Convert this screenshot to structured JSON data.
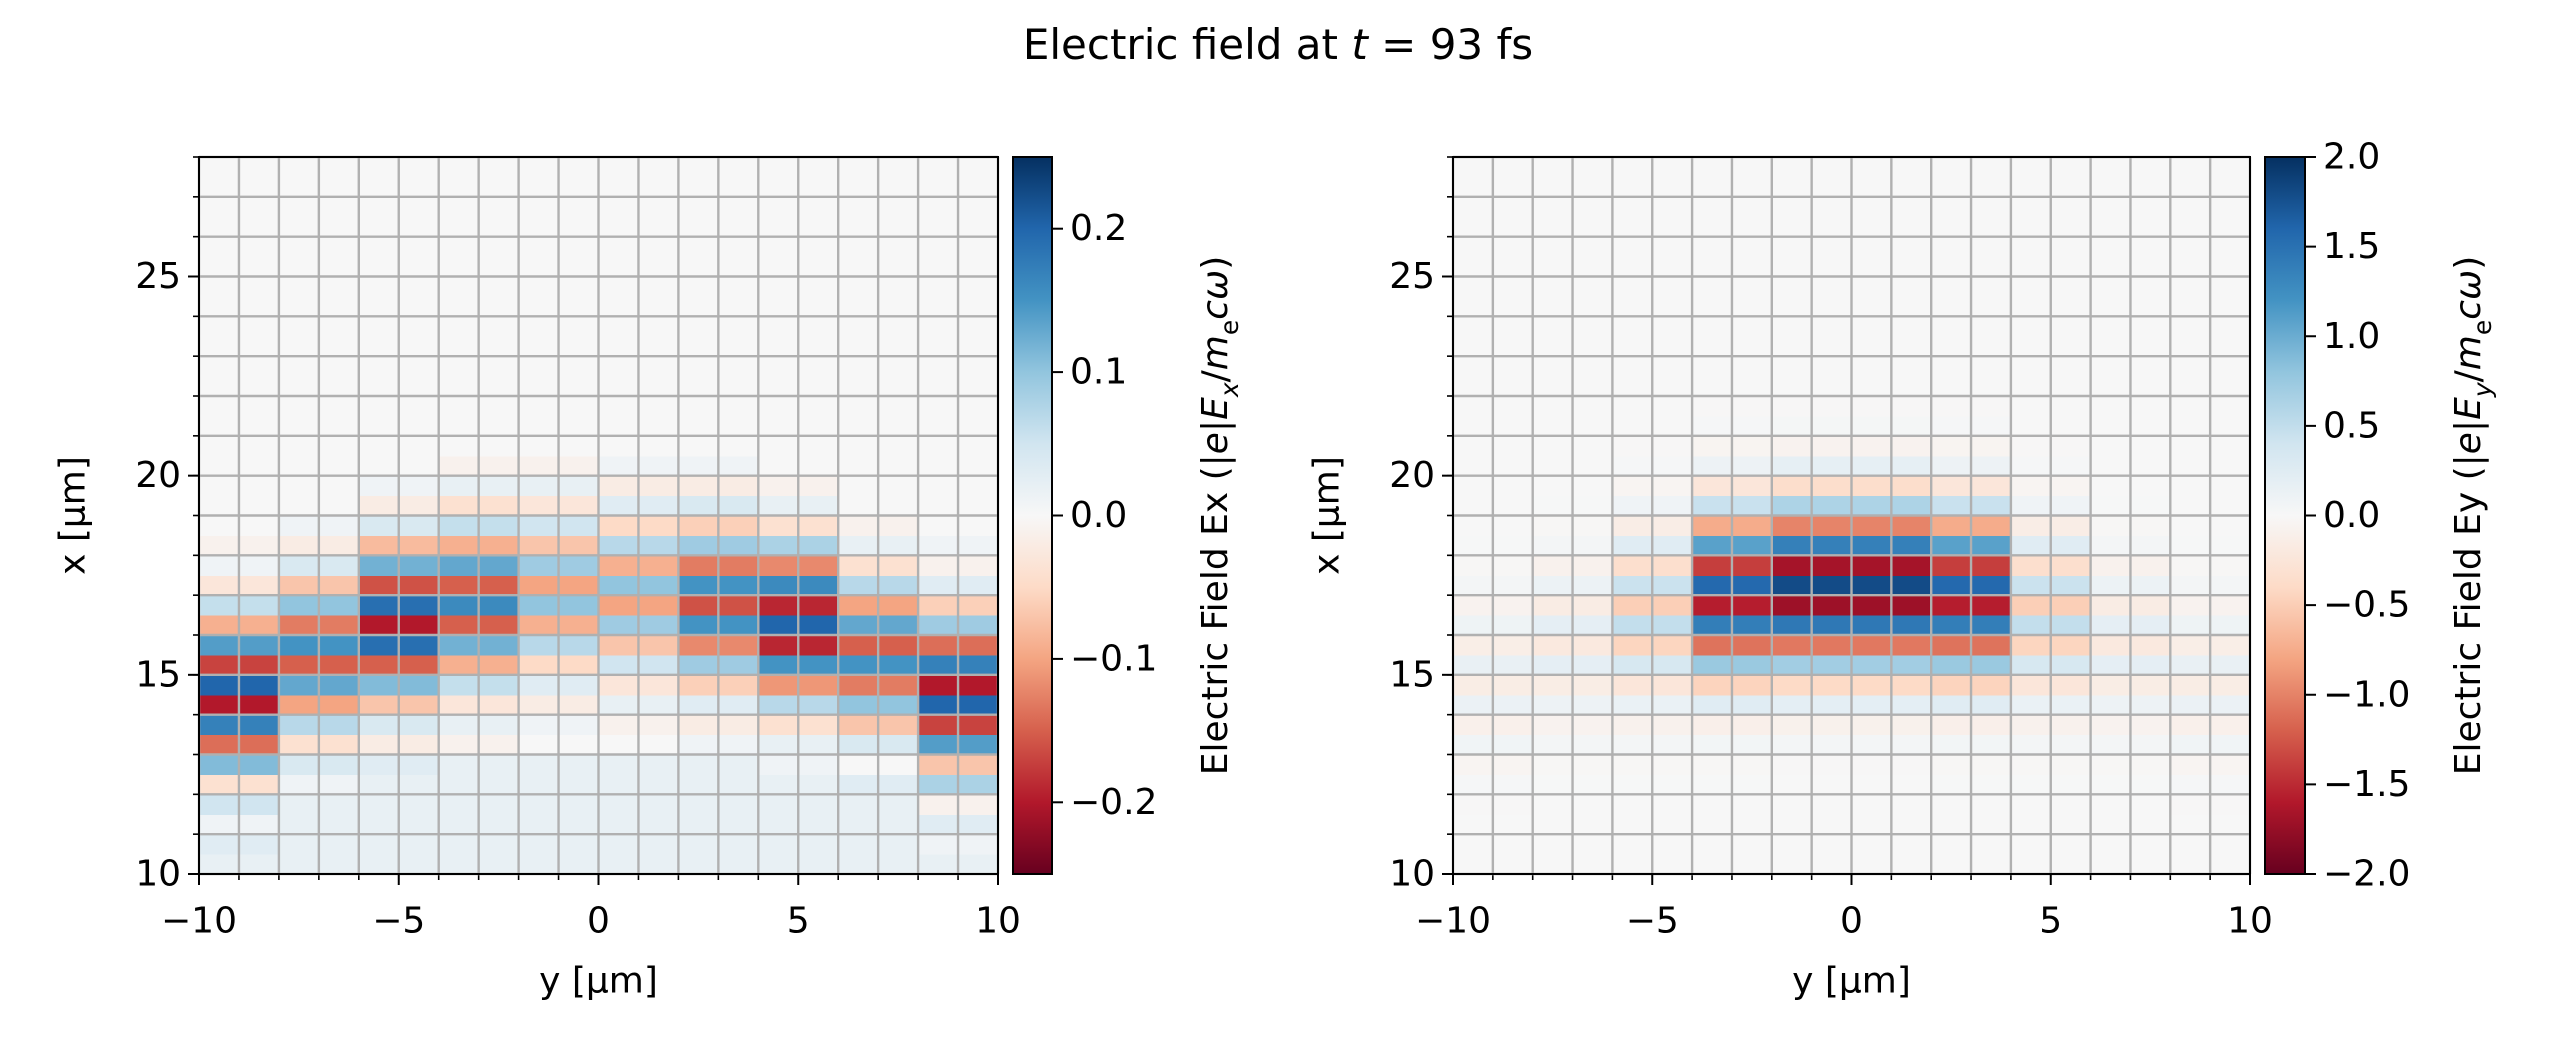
{
  "title": [
    "Electric field at ",
    "t",
    " = 93 fs"
  ],
  "chart_data": [
    {
      "type": "heatmap",
      "xlabel": "y [µm]",
      "ylabel": "x [µm]",
      "xlim": [
        -10,
        10
      ],
      "ylim": [
        10,
        28
      ],
      "xticks": [
        {
          "value": -10,
          "label": "−10"
        },
        {
          "value": -5,
          "label": "−5"
        },
        0,
        5,
        10
      ],
      "yticks": [
        10,
        15,
        20,
        25
      ],
      "xgrid": [
        -10,
        -9,
        -8,
        -7,
        -6,
        -5,
        -4,
        -3,
        -2,
        -1,
        0,
        1,
        2,
        3,
        4,
        5,
        6,
        7,
        8,
        9,
        10
      ],
      "ygrid": [
        10,
        11,
        12,
        13,
        14,
        15,
        16,
        17,
        18,
        19,
        20,
        21,
        22,
        23,
        24,
        25,
        26,
        27,
        28
      ],
      "grid": true,
      "colorbar": {
        "label": [
          "Electric Field Ex (|",
          "e",
          "|",
          "E",
          "x",
          "/",
          "m",
          "e",
          "c",
          "ω",
          ")"
        ],
        "colormap": "RdBu_r",
        "lim": [
          -0.25,
          0.25
        ],
        "ticks": [
          {
            "value": -0.2,
            "label": "−0.2"
          },
          {
            "value": -0.1,
            "label": "−0.1"
          },
          {
            "value": 0,
            "label": "0.0"
          },
          0.1,
          0.2
        ]
      },
      "x": [
        -9,
        -7,
        -5,
        -3,
        -1,
        1,
        3,
        5,
        7,
        9
      ],
      "y": [
        10.25,
        10.75,
        11.25,
        11.75,
        12.25,
        12.75,
        13.25,
        13.75,
        14.25,
        14.75,
        15.25,
        15.75,
        16.25,
        16.75,
        17.25,
        17.75,
        18.25,
        18.75,
        19.25,
        19.75,
        20.25,
        20.75,
        21.25,
        21.75,
        22.25,
        22.75,
        23.25,
        23.75,
        24.25,
        24.75,
        25.25,
        25.75,
        26.25,
        26.75,
        27.25,
        27.75
      ],
      "z": [
        [
          0.02,
          0.02,
          0.02,
          0.02,
          0.02,
          0.02,
          0.02,
          0.02,
          0.02,
          0.02
        ],
        [
          0.03,
          0.02,
          0.02,
          0.02,
          0.02,
          0.02,
          0.02,
          0.02,
          0.02,
          0.01
        ],
        [
          0.01,
          0.02,
          0.02,
          0.02,
          0.02,
          0.02,
          0.02,
          0.02,
          0.02,
          0.03
        ],
        [
          0.05,
          0.02,
          0.02,
          0.02,
          0.02,
          0.02,
          0.02,
          0.02,
          0.02,
          -0.01
        ],
        [
          -0.04,
          0.01,
          0.02,
          0.02,
          0.02,
          0.02,
          0.02,
          0.02,
          0.03,
          0.08
        ],
        [
          0.11,
          0.04,
          0.03,
          0.02,
          0.02,
          0.02,
          0.02,
          0.01,
          0.0,
          -0.07
        ],
        [
          -0.14,
          -0.04,
          -0.02,
          -0.01,
          0.0,
          0.0,
          0.01,
          0.02,
          0.04,
          0.14
        ],
        [
          0.17,
          0.07,
          0.04,
          0.02,
          0.01,
          -0.01,
          -0.02,
          -0.04,
          -0.07,
          -0.17
        ],
        [
          -0.2,
          -0.1,
          -0.07,
          -0.03,
          -0.02,
          0.02,
          0.03,
          0.07,
          0.1,
          0.2
        ],
        [
          0.2,
          0.13,
          0.11,
          0.06,
          0.03,
          -0.03,
          -0.06,
          -0.11,
          -0.13,
          -0.2
        ],
        [
          -0.17,
          -0.15,
          -0.15,
          -0.09,
          -0.05,
          0.05,
          0.09,
          0.15,
          0.15,
          0.17
        ],
        [
          0.14,
          0.15,
          0.19,
          0.12,
          0.07,
          -0.07,
          -0.12,
          -0.19,
          -0.15,
          -0.14
        ],
        [
          -0.09,
          -0.13,
          -0.2,
          -0.15,
          -0.09,
          0.09,
          0.15,
          0.2,
          0.13,
          0.09
        ],
        [
          0.06,
          0.1,
          0.19,
          0.16,
          0.1,
          -0.1,
          -0.16,
          -0.19,
          -0.1,
          -0.06
        ],
        [
          -0.03,
          -0.07,
          -0.16,
          -0.15,
          -0.1,
          0.1,
          0.15,
          0.16,
          0.07,
          0.03
        ],
        [
          0.01,
          0.04,
          0.12,
          0.13,
          0.09,
          -0.09,
          -0.13,
          -0.12,
          -0.04,
          -0.01
        ],
        [
          -0.01,
          -0.02,
          -0.08,
          -0.09,
          -0.07,
          0.07,
          0.09,
          0.08,
          0.02,
          0.01
        ],
        [
          0,
          0.01,
          0.04,
          0.06,
          0.05,
          -0.05,
          -0.06,
          -0.04,
          -0.01,
          0
        ],
        [
          0,
          0,
          -0.02,
          -0.04,
          -0.03,
          0.03,
          0.04,
          0.02,
          0,
          0
        ],
        [
          0,
          0,
          0.01,
          0.02,
          0.02,
          -0.02,
          -0.02,
          -0.01,
          0,
          0
        ],
        [
          0,
          0,
          0,
          -0.01,
          -0.01,
          0.01,
          0.01,
          0,
          0,
          0
        ],
        [
          0,
          0,
          0,
          0,
          0,
          0,
          0,
          0,
          0,
          0
        ],
        [
          0,
          0,
          0,
          0,
          0,
          0,
          0,
          0,
          0,
          0
        ],
        [
          0,
          0,
          0,
          0,
          0,
          0,
          0,
          0,
          0,
          0
        ],
        [
          0,
          0,
          0,
          0,
          0,
          0,
          0,
          0,
          0,
          0
        ],
        [
          0,
          0,
          0,
          0,
          0,
          0,
          0,
          0,
          0,
          0
        ],
        [
          0,
          0,
          0,
          0,
          0,
          0,
          0,
          0,
          0,
          0
        ],
        [
          0,
          0,
          0,
          0,
          0,
          0,
          0,
          0,
          0,
          0
        ],
        [
          0,
          0,
          0,
          0,
          0,
          0,
          0,
          0,
          0,
          0
        ],
        [
          0,
          0,
          0,
          0,
          0,
          0,
          0,
          0,
          0,
          0
        ],
        [
          0,
          0,
          0,
          0,
          0,
          0,
          0,
          0,
          0,
          0
        ],
        [
          0,
          0,
          0,
          0,
          0,
          0,
          0,
          0,
          0,
          0
        ],
        [
          0,
          0,
          0,
          0,
          0,
          0,
          0,
          0,
          0,
          0
        ],
        [
          0,
          0,
          0,
          0,
          0,
          0,
          0,
          0,
          0,
          0
        ],
        [
          0,
          0,
          0,
          0,
          0,
          0,
          0,
          0,
          0,
          0
        ],
        [
          0,
          0,
          0,
          0,
          0,
          0,
          0,
          0,
          0,
          0
        ]
      ]
    },
    {
      "type": "heatmap",
      "xlabel": "y [µm]",
      "ylabel": "x [µm]",
      "xlim": [
        -10,
        10
      ],
      "ylim": [
        10,
        28
      ],
      "xticks": [
        {
          "value": -10,
          "label": "−10"
        },
        {
          "value": -5,
          "label": "−5"
        },
        0,
        5,
        10
      ],
      "yticks": [
        10,
        15,
        20,
        25
      ],
      "xgrid": [
        -10,
        -9,
        -8,
        -7,
        -6,
        -5,
        -4,
        -3,
        -2,
        -1,
        0,
        1,
        2,
        3,
        4,
        5,
        6,
        7,
        8,
        9,
        10
      ],
      "ygrid": [
        10,
        11,
        12,
        13,
        14,
        15,
        16,
        17,
        18,
        19,
        20,
        21,
        22,
        23,
        24,
        25,
        26,
        27,
        28
      ],
      "grid": true,
      "colorbar": {
        "label": [
          "Electric Field Ey (|",
          "e",
          "|",
          "E",
          "y",
          "/",
          "m",
          "e",
          "c",
          "ω",
          ")"
        ],
        "colormap": "RdBu_r",
        "lim": [
          -2,
          2
        ],
        "ticks": [
          {
            "value": -2,
            "label": "−2.0"
          },
          {
            "value": -1.5,
            "label": "−1.5"
          },
          {
            "value": -1,
            "label": "−1.0"
          },
          {
            "value": -0.5,
            "label": "−0.5"
          },
          {
            "value": 0,
            "label": "0.0"
          },
          0.5,
          {
            "value": 1,
            "label": "1.0"
          },
          1.5,
          {
            "value": 2,
            "label": "2.0"
          }
        ]
      },
      "x": [
        -9,
        -7,
        -5,
        -3,
        -1,
        1,
        3,
        5,
        7,
        9
      ],
      "y": [
        10.25,
        10.75,
        11.25,
        11.75,
        12.25,
        12.75,
        13.25,
        13.75,
        14.25,
        14.75,
        15.25,
        15.75,
        16.25,
        16.75,
        17.25,
        17.75,
        18.25,
        18.75,
        19.25,
        19.75,
        20.25,
        20.75,
        21.25,
        21.75,
        22.25,
        22.75,
        23.25,
        23.75,
        24.25,
        24.75,
        25.25,
        25.75,
        26.25,
        26.75,
        27.25,
        27.75
      ],
      "z": [
        [
          0,
          0,
          0,
          0,
          0,
          0,
          0,
          0,
          0,
          0
        ],
        [
          0,
          0,
          0,
          0,
          0,
          0,
          0,
          0,
          0,
          0
        ],
        [
          0,
          0,
          0,
          0,
          0,
          0,
          0,
          0,
          0,
          0
        ],
        [
          -0.01,
          0,
          0,
          0,
          0,
          0,
          0,
          0,
          0,
          -0.01
        ],
        [
          0.02,
          0.01,
          0.01,
          0.01,
          0,
          0,
          0.01,
          0.01,
          0.01,
          0.02
        ],
        [
          -0.04,
          -0.02,
          -0.02,
          -0.02,
          -0.01,
          -0.01,
          -0.02,
          -0.02,
          -0.02,
          -0.04
        ],
        [
          0.07,
          0.04,
          0.04,
          0.05,
          0.04,
          0.04,
          0.05,
          0.04,
          0.04,
          0.07
        ],
        [
          -0.1,
          -0.07,
          -0.08,
          -0.11,
          -0.09,
          -0.09,
          -0.11,
          -0.08,
          -0.07,
          -0.1
        ],
        [
          0.13,
          0.11,
          0.14,
          0.24,
          0.2,
          0.2,
          0.24,
          0.14,
          0.11,
          0.13
        ],
        [
          -0.15,
          -0.15,
          -0.24,
          -0.45,
          -0.4,
          -0.4,
          -0.45,
          -0.24,
          -0.15,
          -0.15
        ],
        [
          0.15,
          0.19,
          0.34,
          0.75,
          0.7,
          0.7,
          0.75,
          0.34,
          0.19,
          0.15
        ],
        [
          -0.13,
          -0.2,
          -0.44,
          -1.09,
          -1.06,
          -1.06,
          -1.09,
          -0.44,
          -0.2,
          -0.13
        ],
        [
          0.1,
          0.19,
          0.49,
          1.39,
          1.44,
          1.44,
          1.39,
          0.49,
          0.19,
          0.1
        ],
        [
          -0.07,
          -0.16,
          -0.49,
          -1.57,
          -1.71,
          -1.71,
          -1.57,
          -0.49,
          -0.16,
          -0.07
        ],
        [
          0.04,
          0.12,
          0.44,
          1.57,
          1.8,
          1.8,
          1.57,
          0.44,
          0.12,
          0.04
        ],
        [
          -0.02,
          -0.08,
          -0.34,
          -1.39,
          -1.67,
          -1.67,
          -1.39,
          -0.34,
          -0.08,
          -0.02
        ],
        [
          0.01,
          0.04,
          0.24,
          1.09,
          1.37,
          1.37,
          1.09,
          0.24,
          0.04,
          0.01
        ],
        [
          0,
          -0.02,
          -0.14,
          -0.75,
          -0.99,
          -0.99,
          -0.75,
          -0.14,
          -0.02,
          0
        ],
        [
          0,
          0.01,
          0.08,
          0.45,
          0.63,
          0.63,
          0.45,
          0.08,
          0.01,
          0
        ],
        [
          0,
          0,
          -0.04,
          -0.24,
          -0.36,
          -0.36,
          -0.24,
          -0.04,
          0,
          0
        ],
        [
          0,
          0,
          0.02,
          0.11,
          0.18,
          0.18,
          0.11,
          0.02,
          0,
          0
        ],
        [
          0,
          0,
          -0.01,
          -0.05,
          -0.07,
          -0.07,
          -0.05,
          -0.01,
          0,
          0
        ],
        [
          0,
          0,
          0,
          0.02,
          0.03,
          0.03,
          0.02,
          0,
          0,
          0
        ],
        [
          0,
          0,
          0,
          -0.01,
          -0.01,
          -0.01,
          -0.01,
          0,
          0,
          0
        ],
        [
          0,
          0,
          0,
          0,
          0,
          0,
          0,
          0,
          0,
          0
        ],
        [
          0,
          0,
          0,
          0,
          0,
          0,
          0,
          0,
          0,
          0
        ],
        [
          0,
          0,
          0,
          0,
          0,
          0,
          0,
          0,
          0,
          0
        ],
        [
          0,
          0,
          0,
          0,
          0,
          0,
          0,
          0,
          0,
          0
        ],
        [
          0,
          0,
          0,
          0,
          0,
          0,
          0,
          0,
          0,
          0
        ],
        [
          0,
          0,
          0,
          0,
          0,
          0,
          0,
          0,
          0,
          0
        ],
        [
          0,
          0,
          0,
          0,
          0,
          0,
          0,
          0,
          0,
          0
        ],
        [
          0,
          0,
          0,
          0,
          0,
          0,
          0,
          0,
          0,
          0
        ],
        [
          0,
          0,
          0,
          0,
          0,
          0,
          0,
          0,
          0,
          0
        ],
        [
          0,
          0,
          0,
          0,
          0,
          0,
          0,
          0,
          0,
          0
        ],
        [
          0,
          0,
          0,
          0,
          0,
          0,
          0,
          0,
          0,
          0
        ],
        [
          0,
          0,
          0,
          0,
          0,
          0,
          0,
          0,
          0,
          0
        ]
      ]
    }
  ]
}
